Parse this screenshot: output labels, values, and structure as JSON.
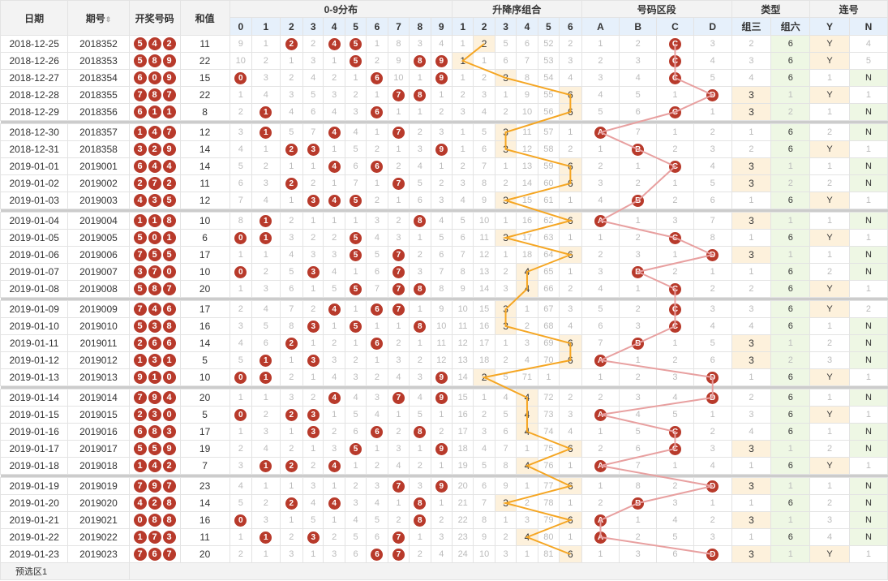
{
  "header": {
    "date": "日期",
    "issue": "期号",
    "draw": "开奖号码",
    "sum": "和值",
    "dist": "0-9分布",
    "order": "升降序组合",
    "zone": "号码区段",
    "type": "类型",
    "lian": "连号",
    "dist_cols": [
      "0",
      "1",
      "2",
      "3",
      "4",
      "5",
      "6",
      "7",
      "8",
      "9"
    ],
    "order_cols": [
      "1",
      "2",
      "3",
      "4",
      "5",
      "6"
    ],
    "zone_cols": [
      "A",
      "B",
      "C",
      "D"
    ],
    "type_cols": [
      "组三",
      "组六"
    ],
    "lian_cols": [
      "Y",
      "N"
    ]
  },
  "footer": {
    "label": "预选区1"
  },
  "rows": [
    {
      "date": "2018-12-25",
      "issue": "2018352",
      "draw": [
        "5",
        "4",
        "2"
      ],
      "sum": "11",
      "dist": [
        "9",
        "1",
        "2",
        "2",
        "4",
        "5",
        "1",
        "8",
        "3",
        "4"
      ],
      "order": [
        "1",
        "2",
        "5",
        "6",
        "52",
        "2"
      ],
      "zone": [
        "1",
        "2",
        "C",
        "3"
      ],
      "type": [
        "2",
        "6"
      ],
      "lian": [
        "Y",
        "4"
      ]
    },
    {
      "date": "2018-12-26",
      "issue": "2018353",
      "draw": [
        "5",
        "8",
        "9"
      ],
      "sum": "22",
      "dist": [
        "10",
        "2",
        "1",
        "3",
        "1",
        "5",
        "2",
        "9",
        "8",
        "9"
      ],
      "order": [
        "1",
        "1",
        "6",
        "7",
        "53",
        "3"
      ],
      "zone": [
        "2",
        "3",
        "C",
        "4"
      ],
      "type": [
        "3",
        "6"
      ],
      "lian": [
        "Y",
        "5"
      ]
    },
    {
      "date": "2018-12-27",
      "issue": "2018354",
      "draw": [
        "6",
        "0",
        "9"
      ],
      "sum": "15",
      "dist": [
        "0",
        "3",
        "2",
        "4",
        "2",
        "1",
        "6",
        "10",
        "1",
        "9"
      ],
      "order": [
        "1",
        "2",
        "3",
        "8",
        "54",
        "4"
      ],
      "zone": [
        "3",
        "4",
        "C",
        "5"
      ],
      "type": [
        "4",
        "6"
      ],
      "lian": [
        "1",
        "N"
      ]
    },
    {
      "date": "2018-12-28",
      "issue": "2018355",
      "draw": [
        "7",
        "8",
        "7"
      ],
      "sum": "22",
      "dist": [
        "1",
        "4",
        "3",
        "5",
        "3",
        "2",
        "1",
        "7",
        "8",
        "1"
      ],
      "order": [
        "2",
        "3",
        "1",
        "9",
        "55",
        "6"
      ],
      "zone": [
        "4",
        "5",
        "1",
        "D"
      ],
      "type": [
        "3",
        "1"
      ],
      "lian": [
        "Y",
        "1"
      ]
    },
    {
      "date": "2018-12-29",
      "issue": "2018356",
      "draw": [
        "6",
        "1",
        "1"
      ],
      "sum": "8",
      "dist": [
        "2",
        "1",
        "4",
        "6",
        "4",
        "3",
        "6",
        "1",
        "1",
        "2"
      ],
      "order": [
        "3",
        "4",
        "2",
        "10",
        "56",
        "6"
      ],
      "zone": [
        "5",
        "6",
        "C",
        "1"
      ],
      "type": [
        "3",
        "2"
      ],
      "lian": [
        "1",
        "N"
      ]
    },
    {
      "date": "2018-12-30",
      "issue": "2018357",
      "draw": [
        "1",
        "4",
        "7"
      ],
      "sum": "12",
      "dist": [
        "3",
        "1",
        "5",
        "7",
        "4",
        "4",
        "1",
        "7",
        "2",
        "3"
      ],
      "order": [
        "1",
        "5",
        "3",
        "11",
        "57",
        "1"
      ],
      "zone": [
        "A",
        "7",
        "1",
        "2"
      ],
      "type": [
        "1",
        "6"
      ],
      "lian": [
        "2",
        "N"
      ]
    },
    {
      "date": "2018-12-31",
      "issue": "2018358",
      "draw": [
        "3",
        "2",
        "9"
      ],
      "sum": "14",
      "dist": [
        "4",
        "1",
        "2",
        "3",
        "1",
        "5",
        "2",
        "1",
        "3",
        "9"
      ],
      "order": [
        "1",
        "6",
        "3",
        "12",
        "58",
        "2"
      ],
      "zone": [
        "1",
        "B",
        "2",
        "3"
      ],
      "type": [
        "2",
        "6"
      ],
      "lian": [
        "Y",
        "1"
      ]
    },
    {
      "date": "2019-01-01",
      "issue": "2019001",
      "draw": [
        "6",
        "4",
        "4"
      ],
      "sum": "14",
      "dist": [
        "5",
        "2",
        "1",
        "1",
        "4",
        "6",
        "6",
        "2",
        "4",
        "1"
      ],
      "order": [
        "2",
        "7",
        "1",
        "13",
        "59",
        "6"
      ],
      "zone": [
        "2",
        "1",
        "C",
        "4"
      ],
      "type": [
        "3",
        "1"
      ],
      "lian": [
        "1",
        "N"
      ]
    },
    {
      "date": "2019-01-02",
      "issue": "2019002",
      "draw": [
        "2",
        "7",
        "2"
      ],
      "sum": "11",
      "dist": [
        "6",
        "3",
        "2",
        "2",
        "1",
        "7",
        "1",
        "7",
        "5",
        "2"
      ],
      "order": [
        "3",
        "8",
        "2",
        "14",
        "60",
        "6"
      ],
      "zone": [
        "3",
        "2",
        "1",
        "5"
      ],
      "type": [
        "3",
        "2"
      ],
      "lian": [
        "2",
        "N"
      ]
    },
    {
      "date": "2019-01-03",
      "issue": "2019003",
      "draw": [
        "4",
        "3",
        "5"
      ],
      "sum": "12",
      "dist": [
        "7",
        "4",
        "1",
        "3",
        "4",
        "5",
        "2",
        "1",
        "6",
        "3"
      ],
      "order": [
        "4",
        "9",
        "3",
        "15",
        "61",
        "1"
      ],
      "zone": [
        "4",
        "B",
        "2",
        "6"
      ],
      "type": [
        "1",
        "6"
      ],
      "lian": [
        "Y",
        "1"
      ]
    },
    {
      "date": "2019-01-04",
      "issue": "2019004",
      "draw": [
        "1",
        "1",
        "8"
      ],
      "sum": "10",
      "dist": [
        "8",
        "1",
        "2",
        "1",
        "1",
        "1",
        "3",
        "2",
        "8",
        "4"
      ],
      "order": [
        "5",
        "10",
        "1",
        "16",
        "62",
        "6"
      ],
      "zone": [
        "A",
        "1",
        "3",
        "7"
      ],
      "type": [
        "3",
        "1"
      ],
      "lian": [
        "1",
        "N"
      ]
    },
    {
      "date": "2019-01-05",
      "issue": "2019005",
      "draw": [
        "5",
        "0",
        "1"
      ],
      "sum": "6",
      "dist": [
        "0",
        "1",
        "3",
        "2",
        "2",
        "5",
        "4",
        "3",
        "1",
        "5"
      ],
      "order": [
        "6",
        "11",
        "3",
        "17",
        "63",
        "1"
      ],
      "zone": [
        "1",
        "2",
        "C",
        "8"
      ],
      "type": [
        "1",
        "6"
      ],
      "lian": [
        "Y",
        "1"
      ]
    },
    {
      "date": "2019-01-06",
      "issue": "2019006",
      "draw": [
        "7",
        "5",
        "5"
      ],
      "sum": "17",
      "dist": [
        "1",
        "1",
        "4",
        "3",
        "3",
        "5",
        "5",
        "7",
        "2",
        "6"
      ],
      "order": [
        "7",
        "12",
        "1",
        "18",
        "64",
        "6"
      ],
      "zone": [
        "2",
        "3",
        "1",
        "D"
      ],
      "type": [
        "3",
        "1"
      ],
      "lian": [
        "1",
        "N"
      ]
    },
    {
      "date": "2019-01-07",
      "issue": "2019007",
      "draw": [
        "3",
        "7",
        "0"
      ],
      "sum": "10",
      "dist": [
        "0",
        "2",
        "5",
        "3",
        "4",
        "1",
        "6",
        "7",
        "3",
        "7"
      ],
      "order": [
        "8",
        "13",
        "2",
        "4",
        "65",
        "1"
      ],
      "zone": [
        "3",
        "B",
        "2",
        "1"
      ],
      "type": [
        "1",
        "6"
      ],
      "lian": [
        "2",
        "N"
      ]
    },
    {
      "date": "2019-01-08",
      "issue": "2019008",
      "draw": [
        "5",
        "8",
        "7"
      ],
      "sum": "20",
      "dist": [
        "1",
        "3",
        "6",
        "1",
        "5",
        "5",
        "7",
        "7",
        "8",
        "8"
      ],
      "order": [
        "9",
        "14",
        "3",
        "4",
        "66",
        "2"
      ],
      "zone": [
        "4",
        "1",
        "C",
        "2"
      ],
      "type": [
        "2",
        "6"
      ],
      "lian": [
        "Y",
        "1"
      ]
    },
    {
      "date": "2019-01-09",
      "issue": "2019009",
      "draw": [
        "7",
        "4",
        "6"
      ],
      "sum": "17",
      "dist": [
        "2",
        "4",
        "7",
        "2",
        "4",
        "1",
        "6",
        "7",
        "1",
        "9"
      ],
      "order": [
        "10",
        "15",
        "3",
        "1",
        "67",
        "3"
      ],
      "zone": [
        "5",
        "2",
        "C",
        "3"
      ],
      "type": [
        "3",
        "6"
      ],
      "lian": [
        "Y",
        "2"
      ]
    },
    {
      "date": "2019-01-10",
      "issue": "2019010",
      "draw": [
        "5",
        "3",
        "8"
      ],
      "sum": "16",
      "dist": [
        "3",
        "5",
        "8",
        "3",
        "1",
        "5",
        "1",
        "1",
        "8",
        "10"
      ],
      "order": [
        "11",
        "16",
        "3",
        "2",
        "68",
        "4"
      ],
      "zone": [
        "6",
        "3",
        "C",
        "4"
      ],
      "type": [
        "4",
        "6"
      ],
      "lian": [
        "1",
        "N"
      ]
    },
    {
      "date": "2019-01-11",
      "issue": "2019011",
      "draw": [
        "2",
        "6",
        "6"
      ],
      "sum": "14",
      "dist": [
        "4",
        "6",
        "2",
        "1",
        "2",
        "1",
        "6",
        "2",
        "1",
        "11"
      ],
      "order": [
        "12",
        "17",
        "1",
        "3",
        "69",
        "6"
      ],
      "zone": [
        "7",
        "B",
        "1",
        "5"
      ],
      "type": [
        "3",
        "1"
      ],
      "lian": [
        "2",
        "N"
      ]
    },
    {
      "date": "2019-01-12",
      "issue": "2019012",
      "draw": [
        "1",
        "3",
        "1"
      ],
      "sum": "5",
      "dist": [
        "5",
        "1",
        "1",
        "3",
        "3",
        "2",
        "1",
        "3",
        "2",
        "12"
      ],
      "order": [
        "13",
        "18",
        "2",
        "4",
        "70",
        "6"
      ],
      "zone": [
        "A",
        "1",
        "2",
        "6"
      ],
      "type": [
        "3",
        "2"
      ],
      "lian": [
        "3",
        "N"
      ]
    },
    {
      "date": "2019-01-13",
      "issue": "2019013",
      "draw": [
        "9",
        "1",
        "0"
      ],
      "sum": "10",
      "dist": [
        "0",
        "1",
        "2",
        "1",
        "4",
        "3",
        "2",
        "4",
        "3",
        "9"
      ],
      "order": [
        "14",
        "2",
        "5",
        "71",
        "1",
        ""
      ],
      "zone": [
        "1",
        "2",
        "3",
        "D"
      ],
      "type": [
        "1",
        "6"
      ],
      "lian": [
        "Y",
        "1"
      ]
    },
    {
      "date": "2019-01-14",
      "issue": "2019014",
      "draw": [
        "7",
        "9",
        "4"
      ],
      "sum": "20",
      "dist": [
        "1",
        "1",
        "3",
        "2",
        "4",
        "4",
        "3",
        "7",
        "4",
        "9"
      ],
      "order": [
        "15",
        "1",
        "4",
        "4",
        "72",
        "2"
      ],
      "zone": [
        "2",
        "3",
        "4",
        "D"
      ],
      "type": [
        "2",
        "6"
      ],
      "lian": [
        "1",
        "N"
      ]
    },
    {
      "date": "2019-01-15",
      "issue": "2019015",
      "draw": [
        "2",
        "3",
        "0"
      ],
      "sum": "5",
      "dist": [
        "0",
        "2",
        "2",
        "3",
        "1",
        "5",
        "4",
        "1",
        "5",
        "1"
      ],
      "order": [
        "16",
        "2",
        "5",
        "4",
        "73",
        "3"
      ],
      "zone": [
        "A",
        "4",
        "5",
        "1"
      ],
      "type": [
        "3",
        "6"
      ],
      "lian": [
        "Y",
        "1"
      ]
    },
    {
      "date": "2019-01-16",
      "issue": "2019016",
      "draw": [
        "6",
        "8",
        "3"
      ],
      "sum": "17",
      "dist": [
        "1",
        "3",
        "1",
        "3",
        "2",
        "6",
        "6",
        "2",
        "8",
        "2"
      ],
      "order": [
        "17",
        "3",
        "6",
        "4",
        "74",
        "4"
      ],
      "zone": [
        "1",
        "5",
        "C",
        "2"
      ],
      "type": [
        "4",
        "6"
      ],
      "lian": [
        "1",
        "N"
      ]
    },
    {
      "date": "2019-01-17",
      "issue": "2019017",
      "draw": [
        "5",
        "5",
        "9"
      ],
      "sum": "19",
      "dist": [
        "2",
        "4",
        "2",
        "1",
        "3",
        "5",
        "1",
        "3",
        "1",
        "9"
      ],
      "order": [
        "18",
        "4",
        "7",
        "1",
        "75",
        "6"
      ],
      "zone": [
        "2",
        "6",
        "C",
        "3"
      ],
      "type": [
        "3",
        "1"
      ],
      "lian": [
        "2",
        "N"
      ]
    },
    {
      "date": "2019-01-18",
      "issue": "2019018",
      "draw": [
        "1",
        "4",
        "2"
      ],
      "sum": "7",
      "dist": [
        "3",
        "1",
        "2",
        "2",
        "4",
        "1",
        "2",
        "4",
        "2",
        "1"
      ],
      "order": [
        "19",
        "5",
        "8",
        "4",
        "76",
        "1"
      ],
      "zone": [
        "A",
        "7",
        "1",
        "4"
      ],
      "type": [
        "1",
        "6"
      ],
      "lian": [
        "Y",
        "1"
      ]
    },
    {
      "date": "2019-01-19",
      "issue": "2019019",
      "draw": [
        "7",
        "9",
        "7"
      ],
      "sum": "23",
      "dist": [
        "4",
        "1",
        "1",
        "3",
        "1",
        "2",
        "3",
        "7",
        "3",
        "9"
      ],
      "order": [
        "20",
        "6",
        "9",
        "1",
        "77",
        "6"
      ],
      "zone": [
        "1",
        "8",
        "2",
        "D"
      ],
      "type": [
        "3",
        "1"
      ],
      "lian": [
        "1",
        "N"
      ]
    },
    {
      "date": "2019-01-20",
      "issue": "2019020",
      "draw": [
        "4",
        "2",
        "8"
      ],
      "sum": "14",
      "dist": [
        "5",
        "2",
        "2",
        "4",
        "4",
        "3",
        "4",
        "1",
        "8",
        "1"
      ],
      "order": [
        "21",
        "7",
        "3",
        "2",
        "78",
        "1"
      ],
      "zone": [
        "2",
        "B",
        "3",
        "1"
      ],
      "type": [
        "1",
        "6"
      ],
      "lian": [
        "2",
        "N"
      ]
    },
    {
      "date": "2019-01-21",
      "issue": "2019021",
      "draw": [
        "0",
        "8",
        "8"
      ],
      "sum": "16",
      "dist": [
        "0",
        "3",
        "1",
        "5",
        "1",
        "4",
        "5",
        "2",
        "8",
        "2"
      ],
      "order": [
        "22",
        "8",
        "1",
        "3",
        "79",
        "6"
      ],
      "zone": [
        "A",
        "1",
        "4",
        "2"
      ],
      "type": [
        "3",
        "1"
      ],
      "lian": [
        "3",
        "N"
      ]
    },
    {
      "date": "2019-01-22",
      "issue": "2019022",
      "draw": [
        "1",
        "7",
        "3"
      ],
      "sum": "11",
      "dist": [
        "1",
        "1",
        "2",
        "3",
        "2",
        "5",
        "6",
        "7",
        "1",
        "3"
      ],
      "order": [
        "23",
        "9",
        "2",
        "4",
        "80",
        "1"
      ],
      "zone": [
        "A",
        "2",
        "5",
        "3"
      ],
      "type": [
        "1",
        "6"
      ],
      "lian": [
        "4",
        "N"
      ]
    },
    {
      "date": "2019-01-23",
      "issue": "2019023",
      "draw": [
        "7",
        "6",
        "7"
      ],
      "sum": "20",
      "dist": [
        "2",
        "1",
        "3",
        "1",
        "3",
        "6",
        "6",
        "7",
        "2",
        "4"
      ],
      "order": [
        "24",
        "10",
        "3",
        "1",
        "81",
        "6"
      ],
      "zone": [
        "1",
        "3",
        "6",
        "D"
      ],
      "type": [
        "3",
        "1"
      ],
      "lian": [
        "Y",
        "1"
      ]
    }
  ]
}
